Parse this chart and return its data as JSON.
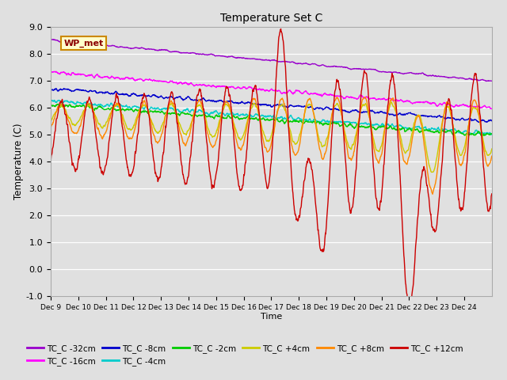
{
  "title": "Temperature Set C",
  "xlabel": "Time",
  "ylabel": "Temperature (C)",
  "ylim": [
    -1.0,
    9.0
  ],
  "yticks": [
    -1.0,
    0.0,
    1.0,
    2.0,
    3.0,
    4.0,
    5.0,
    6.0,
    7.0,
    8.0,
    9.0
  ],
  "series": [
    {
      "label": "TC_C -32cm",
      "color": "#9900cc"
    },
    {
      "label": "TC_C -16cm",
      "color": "#ff00ff"
    },
    {
      "label": "TC_C -8cm",
      "color": "#0000cc"
    },
    {
      "label": "TC_C -4cm",
      "color": "#00cccc"
    },
    {
      "label": "TC_C -2cm",
      "color": "#00cc00"
    },
    {
      "label": "TC_C +4cm",
      "color": "#cccc00"
    },
    {
      "label": "TC_C +8cm",
      "color": "#ff8800"
    },
    {
      "label": "TC_C +12cm",
      "color": "#cc0000"
    }
  ],
  "annotation_text": "WP_met",
  "background_color": "#e0e0e0",
  "grid_color": "#ffffff",
  "xtick_labels": [
    "Dec 9",
    "Dec 10",
    "Dec 11",
    "Dec 12",
    "Dec 13",
    "Dec 14",
    "Dec 15",
    "Dec 16",
    "Dec 17",
    "Dec 18",
    "Dec 19",
    "Dec 20",
    "Dec 21",
    "Dec 22",
    "Dec 23",
    "Dec 24"
  ]
}
